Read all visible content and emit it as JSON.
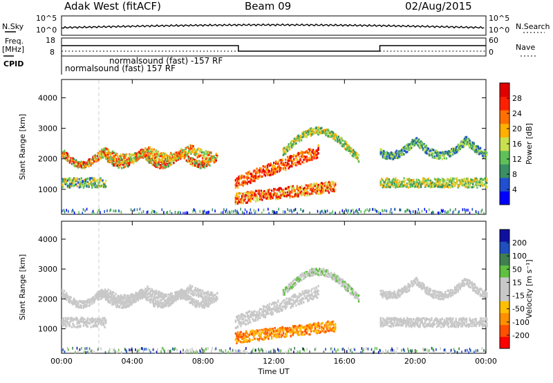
{
  "header": {
    "station": "Adak West (fitACF)",
    "beam": "Beam 09",
    "date": "02/Aug/2015"
  },
  "strip": {
    "nsky_label": "N.Sky",
    "nsky_ticks": [
      "10^5",
      "10^0"
    ],
    "nsearch_label": "N.Search",
    "nsearch_ticks": [
      "10^5",
      "10^0"
    ],
    "freq_label": "Freq.",
    "freq_unit": "[MHz]",
    "freq_ticks": [
      "18",
      "8"
    ],
    "nave_label": "Nave",
    "nave_ticks": [
      "60",
      "0"
    ],
    "cpid_label": "CPID",
    "cpid_entries": [
      "normalsound (fast) 157 RF",
      "normalsound (fast) -157 RF"
    ]
  },
  "colors": {
    "power": [
      "#0000ff",
      "#2050d0",
      "#3a8f64",
      "#5fc05a",
      "#c8e050",
      "#ffb000",
      "#ff7000",
      "#ff2000",
      "#e00000"
    ],
    "velocity": [
      "#ff0000",
      "#ff5000",
      "#ff9000",
      "#ffc000",
      "#c8c8c8",
      "#c8c8c8",
      "#60c040",
      "#408050",
      "#2050c0",
      "#1010a0"
    ]
  },
  "chart_data": [
    {
      "type": "heatmap",
      "title": "",
      "xlabel": "",
      "ylabel": "Slant Range [km]",
      "colorbar_label": "Power [dB]",
      "colorbar_ticks": [
        "4",
        "8",
        "12",
        "16",
        "20",
        "24",
        "28"
      ],
      "colorbar_range": [
        0,
        32
      ],
      "xlim": [
        0,
        24
      ],
      "ylim": [
        180,
        4600
      ],
      "yticks": [
        "1000",
        "2000",
        "3000",
        "4000"
      ],
      "xticks": [
        "00:00",
        "04:00",
        "08:00",
        "12:00",
        "16:00",
        "20:00",
        "00:00"
      ]
    },
    {
      "type": "heatmap",
      "title": "",
      "xlabel": "Time UT",
      "ylabel": "Slant Range [km]",
      "colorbar_label": "Velocity [m s⁻¹]",
      "colorbar_ticks": [
        "-200",
        "-100",
        "-50",
        "-15",
        "15",
        "50",
        "100",
        "200"
      ],
      "colorbar_range": [
        -250,
        250
      ],
      "xlim": [
        0,
        24
      ],
      "ylim": [
        180,
        4600
      ],
      "yticks": [
        "1000",
        "2000",
        "3000",
        "4000"
      ],
      "xticks": [
        "00:00",
        "04:00",
        "08:00",
        "12:00",
        "16:00",
        "20:00",
        "00:00"
      ]
    }
  ]
}
